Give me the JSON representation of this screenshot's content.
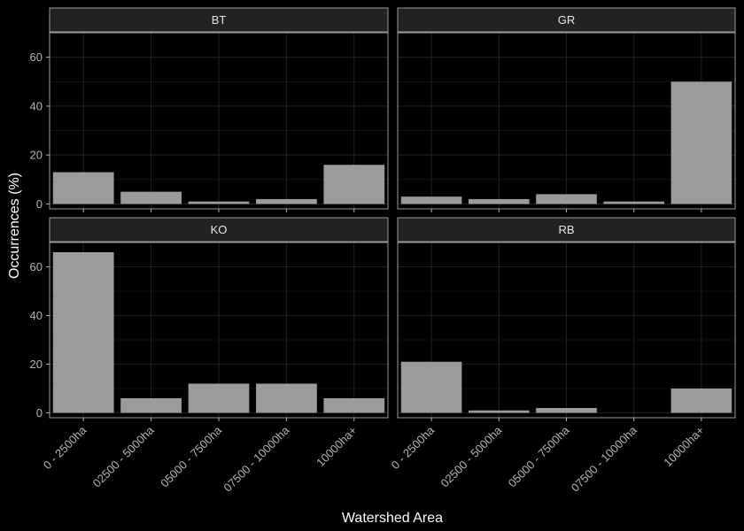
{
  "chart_data": {
    "type": "bar",
    "layout": "facet-grid-2x2",
    "xlabel": "Watershed Area",
    "ylabel": "Occurrences (%)",
    "ylim": [
      -2,
      70
    ],
    "yticks": [
      0,
      20,
      40,
      60
    ],
    "grid": true,
    "categories": [
      "0 - 2500ha",
      "02500 - 5000ha",
      "05000 - 7500ha",
      "07500 - 10000ha",
      "10000ha+"
    ],
    "panels": [
      {
        "name": "BT",
        "values": [
          13,
          5,
          1,
          2,
          16
        ]
      },
      {
        "name": "GR",
        "values": [
          3,
          2,
          4,
          1,
          50
        ]
      },
      {
        "name": "KO",
        "values": [
          66,
          6,
          12,
          12,
          6
        ]
      },
      {
        "name": "RB",
        "values": [
          21,
          1,
          2,
          0,
          10
        ]
      }
    ],
    "colors": {
      "background": "#000000",
      "panel": "#000000",
      "grid": "#1f1f1f",
      "strip": "#222222",
      "panel_border": "#9a9a9a",
      "bar": "#9b9b9b"
    }
  }
}
